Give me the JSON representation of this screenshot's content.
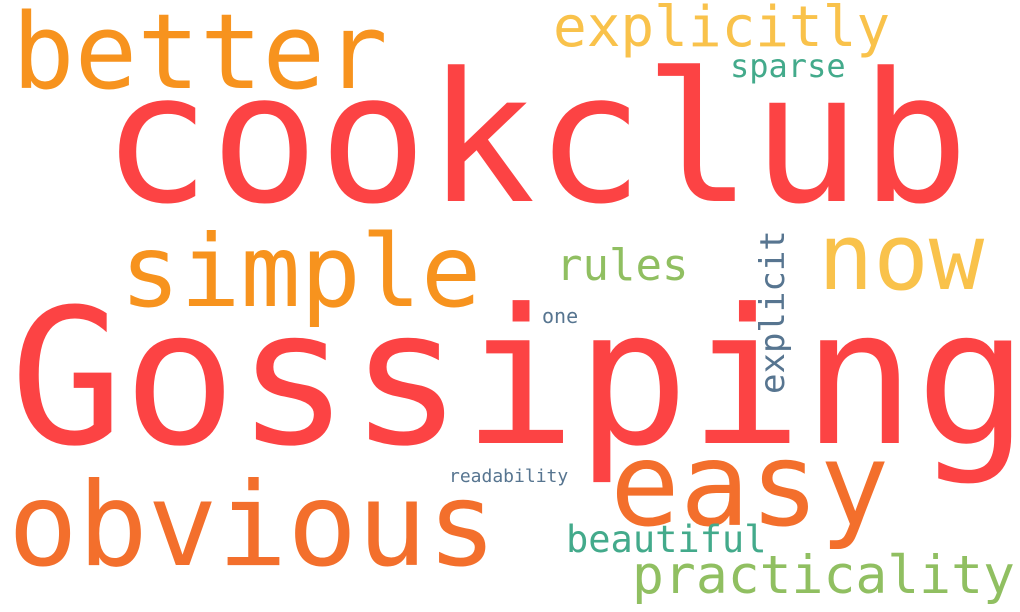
{
  "background_color": "#ffffff",
  "words": [
    {
      "id": "gossiping",
      "text": "Gossiping",
      "color": "#fc4344"
    },
    {
      "id": "cookclub",
      "text": "cookclub",
      "color": "#fc4344"
    },
    {
      "id": "obvious",
      "text": "obvious",
      "color": "#f36f2c"
    },
    {
      "id": "easy",
      "text": "easy",
      "color": "#f36f2c"
    },
    {
      "id": "better",
      "text": "better",
      "color": "#f7931e"
    },
    {
      "id": "simple",
      "text": "simple",
      "color": "#f7931e"
    },
    {
      "id": "now",
      "text": "now",
      "color": "#f9c24b"
    },
    {
      "id": "explicitly",
      "text": "explicitly",
      "color": "#f9c24b"
    },
    {
      "id": "practicality",
      "text": "practicality",
      "color": "#90bf61"
    },
    {
      "id": "rules",
      "text": "rules",
      "color": "#90bf61"
    },
    {
      "id": "beautiful",
      "text": "beautiful",
      "color": "#43aa8b"
    },
    {
      "id": "sparse",
      "text": "sparse",
      "color": "#43aa8b"
    },
    {
      "id": "explicit",
      "text": "explicit",
      "color": "#577590"
    },
    {
      "id": "one",
      "text": "one",
      "color": "#577590"
    },
    {
      "id": "readability",
      "text": "readability",
      "color": "#577590"
    }
  ]
}
